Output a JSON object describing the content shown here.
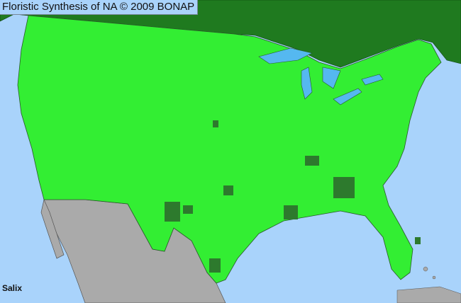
{
  "title": "Floristic Synthesis of NA © 2009 BONAP",
  "taxon": "Salix",
  "colors": {
    "ocean": "#a9d3fb",
    "canada": "#1f7a1f",
    "us_present": "#33ee33",
    "county_dark": "#2d7a2d",
    "mexico": "#aaaaaa",
    "lakes": "#55b8f0"
  }
}
